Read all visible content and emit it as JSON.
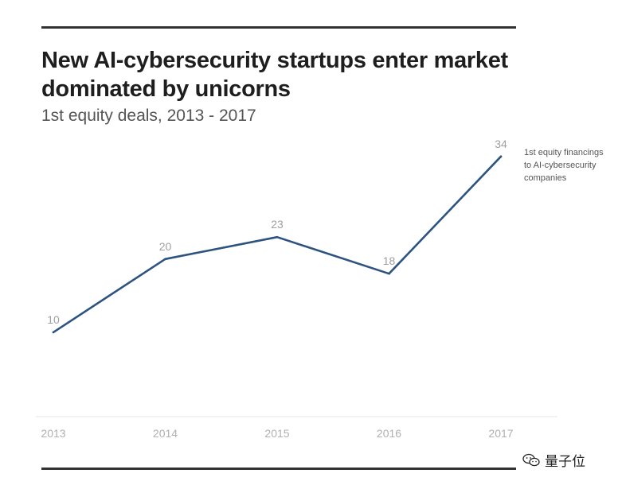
{
  "chart_data": {
    "type": "line",
    "title": "New AI-cybersecurity startups enter market dominated by unicorns",
    "title_lines": [
      "New AI-cybersecurity startups enter market",
      "dominated by unicorns"
    ],
    "subtitle": "1st equity deals, 2013 - 2017",
    "categories": [
      "2013",
      "2014",
      "2015",
      "2016",
      "2017"
    ],
    "series": [
      {
        "name": "1st equity financings to AI-cybersecurity companies",
        "values": [
          10,
          20,
          23,
          18,
          34
        ],
        "color": "#2d5380"
      }
    ],
    "series_label_lines": [
      "1st equity financings",
      "to  AI-cybersecurity",
      "companies"
    ],
    "xlabel": "",
    "ylabel": "",
    "ylim": [
      0,
      38
    ],
    "grid": false,
    "data_labels": true
  },
  "watermark": {
    "text": "量子位",
    "icon": "wechat-icon"
  },
  "colors": {
    "rule": "#333333",
    "axis_text": "#b0b0b0",
    "label_text": "#a0a0a0",
    "baseline": "#e6e6e6"
  }
}
